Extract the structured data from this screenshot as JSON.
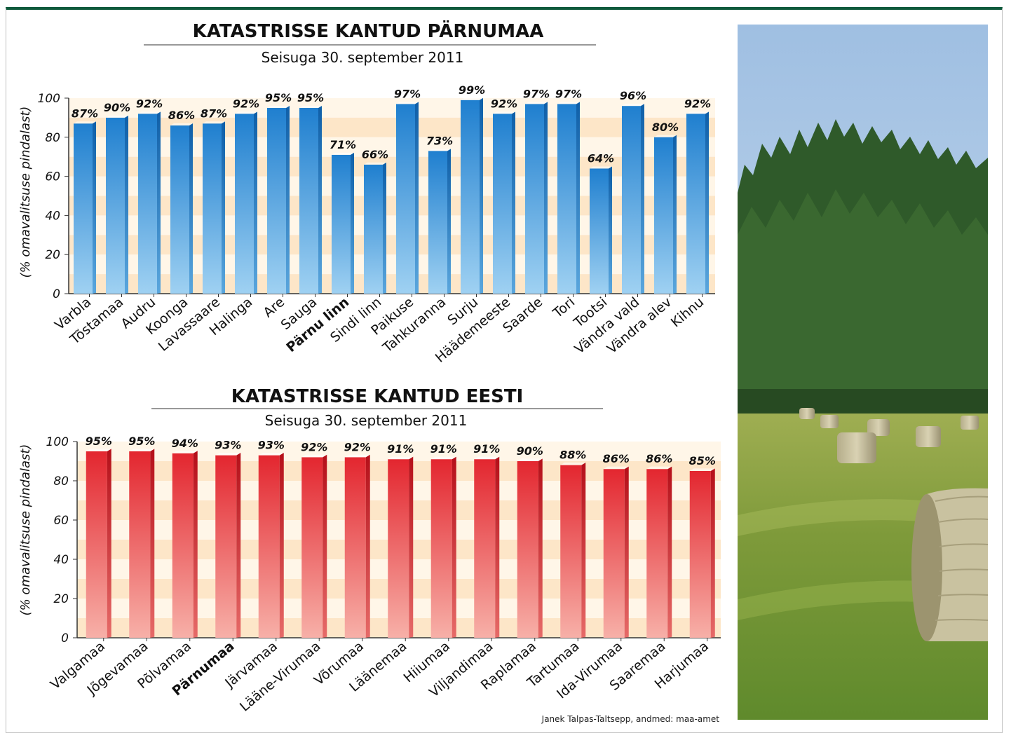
{
  "chart_data": [
    {
      "type": "bar",
      "title": "KATASTRISSE KANTUD PÄRNUMAA",
      "subtitle": "Seisuga 30. september 2011",
      "ylabel": "(% omavalitsuse pindalast)",
      "ylim": [
        0,
        100
      ],
      "yticks": [
        "0",
        "20",
        "40",
        "60",
        "80",
        "100"
      ],
      "bar_color": "#2f8fd1",
      "highlight": "Pärnu linn",
      "categories": [
        "Varbla",
        "Tõstamaa",
        "Audru",
        "Koonga",
        "Lavassaare",
        "Halinga",
        "Are",
        "Sauga",
        "Pärnu linn",
        "Sindi linn",
        "Paikuse",
        "Tahkuranna",
        "Surju",
        "Häädemeeste",
        "Saarde",
        "Tori",
        "Tootsi",
        "Vändra vald",
        "Vändra alev",
        "Kihnu"
      ],
      "values": [
        87,
        90,
        92,
        86,
        87,
        92,
        95,
        95,
        71,
        66,
        97,
        73,
        99,
        92,
        97,
        97,
        64,
        96,
        80,
        92
      ],
      "value_labels": [
        "87%",
        "90%",
        "92%",
        "86%",
        "87%",
        "92%",
        "95%",
        "95%",
        "71%",
        "66%",
        "97%",
        "73%",
        "99%",
        "92%",
        "97%",
        "97%",
        "64%",
        "96%",
        "80%",
        "92%"
      ]
    },
    {
      "type": "bar",
      "title": "KATASTRISSE KANTUD EESTI",
      "subtitle": "Seisuga 30. september 2011",
      "ylabel": "(% omavalitsuse pindalast)",
      "ylim": [
        0,
        100
      ],
      "yticks": [
        "0",
        "20",
        "40",
        "60",
        "80",
        "100"
      ],
      "bar_color": "#e5343f",
      "highlight": "Pärnumaa",
      "categories": [
        "Valgamaa",
        "Jõgevamaa",
        "Põlvamaa",
        "Pärnumaa",
        "Järvamaa",
        "Lääne-Virumaa",
        "Võrumaa",
        "Läänemaa",
        "Hiiumaa",
        "Viljandimaa",
        "Raplamaa",
        "Tartumaa",
        "Ida-Virumaa",
        "Saaremaa",
        "Harjumaa"
      ],
      "values": [
        95,
        95,
        94,
        93,
        93,
        92,
        92,
        91,
        91,
        91,
        90,
        88,
        86,
        86,
        85
      ],
      "value_labels": [
        "95%",
        "95%",
        "94%",
        "93%",
        "93%",
        "92%",
        "92%",
        "91%",
        "91%",
        "91%",
        "90%",
        "88%",
        "86%",
        "86%",
        "85%"
      ]
    }
  ],
  "credit": "Janek Talpas-Taltsepp, andmed: maa-amet",
  "colors": {
    "frame_top": "#0f5a3c",
    "band": "#fde6c8",
    "band_light": "#fff6e8"
  }
}
